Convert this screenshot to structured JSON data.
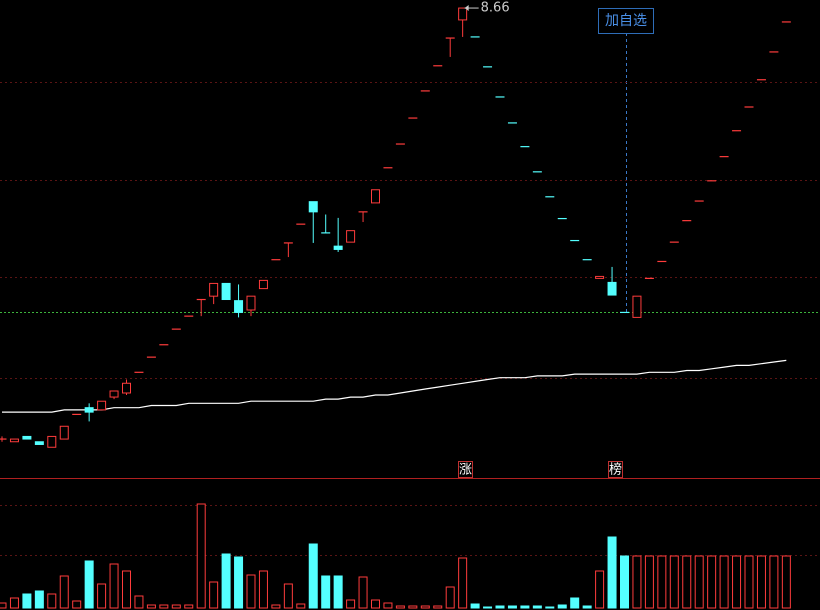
{
  "chart_data": {
    "type": "candlestick",
    "log_scale": true,
    "ylim": [
      0.48,
      9.1
    ],
    "grid": true,
    "grid_levels": [
      5.5,
      3.01,
      1.65,
      0.89
    ],
    "up_color": "#ff3c3c",
    "down_color": "#54ffff",
    "reference_line": 1.33,
    "watch_button": "加自选",
    "markers": [
      "涨",
      "榜"
    ],
    "candles": [
      [
        0.61,
        0.61,
        0.6,
        0.62
      ],
      [
        0.6,
        0.61,
        0.6,
        0.61
      ],
      [
        0.62,
        0.61,
        0.61,
        0.62
      ],
      [
        0.6,
        0.59,
        0.59,
        0.6
      ],
      [
        0.58,
        0.62,
        0.58,
        0.62
      ],
      [
        0.61,
        0.66,
        0.61,
        0.66
      ],
      [
        0.71,
        0.71,
        0.71,
        0.71
      ],
      [
        0.74,
        0.72,
        0.68,
        0.76
      ],
      [
        0.73,
        0.77,
        0.73,
        0.77
      ],
      [
        0.79,
        0.82,
        0.78,
        0.82
      ],
      [
        0.81,
        0.86,
        0.8,
        0.88
      ],
      [
        0.92,
        0.92,
        0.92,
        0.92
      ],
      [
        1.01,
        1.01,
        1.01,
        1.01
      ],
      [
        1.09,
        1.09,
        1.09,
        1.09
      ],
      [
        1.2,
        1.2,
        1.2,
        1.2
      ],
      [
        1.3,
        1.3,
        1.3,
        1.3
      ],
      [
        1.44,
        1.44,
        1.3,
        1.44
      ],
      [
        1.47,
        1.59,
        1.4,
        1.59
      ],
      [
        1.59,
        1.44,
        1.44,
        1.59
      ],
      [
        1.43,
        1.33,
        1.29,
        1.58
      ],
      [
        1.35,
        1.47,
        1.3,
        1.47
      ],
      [
        1.54,
        1.62,
        1.54,
        1.62
      ],
      [
        1.84,
        1.84,
        1.84,
        1.84
      ],
      [
        2.04,
        2.04,
        1.87,
        2.04
      ],
      [
        2.29,
        2.29,
        2.29,
        2.29
      ],
      [
        2.63,
        2.47,
        2.04,
        2.63
      ],
      [
        2.17,
        2.17,
        2.17,
        2.43
      ],
      [
        2.0,
        1.96,
        1.93,
        2.38
      ],
      [
        2.05,
        2.2,
        2.05,
        2.2
      ],
      [
        2.47,
        2.47,
        2.32,
        2.47
      ],
      [
        2.61,
        2.83,
        2.61,
        2.83
      ],
      [
        3.24,
        3.24,
        3.24,
        3.24
      ],
      [
        3.75,
        3.75,
        3.75,
        3.75
      ],
      [
        4.4,
        4.4,
        4.4,
        4.4
      ],
      [
        5.2,
        5.2,
        5.2,
        5.2
      ],
      [
        6.07,
        6.07,
        6.07,
        6.07
      ],
      [
        7.2,
        7.2,
        6.41,
        7.2
      ],
      [
        8.05,
        8.66,
        7.25,
        8.66
      ],
      [
        7.25,
        7.25,
        7.25,
        7.25
      ],
      [
        6.03,
        6.03,
        6.03,
        6.03
      ],
      [
        5.01,
        5.01,
        5.01,
        5.01
      ],
      [
        4.27,
        4.27,
        4.27,
        4.27
      ],
      [
        3.69,
        3.69,
        3.69,
        3.69
      ],
      [
        3.16,
        3.16,
        3.16,
        3.16
      ],
      [
        2.71,
        2.71,
        2.71,
        2.71
      ],
      [
        2.37,
        2.37,
        2.37,
        2.37
      ],
      [
        2.07,
        2.07,
        2.07,
        2.07
      ],
      [
        1.84,
        1.84,
        1.84,
        1.84
      ],
      [
        1.64,
        1.66,
        1.64,
        1.66
      ],
      [
        1.6,
        1.48,
        1.48,
        1.76
      ],
      [
        1.33,
        1.33,
        1.33,
        1.33
      ],
      [
        1.29,
        1.47,
        1.29,
        1.47
      ],
      [
        1.64,
        1.64,
        1.64,
        1.64
      ],
      [
        1.82,
        1.82,
        1.82,
        1.82
      ],
      [
        2.05,
        2.05,
        2.05,
        2.05
      ],
      [
        2.34,
        2.34,
        2.34,
        2.34
      ],
      [
        2.64,
        2.64,
        2.64,
        2.64
      ],
      [
        2.99,
        2.99,
        2.99,
        2.99
      ],
      [
        3.47,
        3.47,
        3.47,
        3.47
      ],
      [
        4.07,
        4.07,
        4.07,
        4.07
      ],
      [
        4.71,
        4.71,
        4.71,
        4.71
      ],
      [
        5.57,
        5.57,
        5.57,
        5.57
      ],
      [
        6.61,
        6.61,
        6.61,
        6.61
      ],
      [
        7.95,
        7.95,
        7.95,
        7.95
      ]
    ],
    "ma": {
      "color": "#ffffff",
      "values": [
        0.72,
        0.72,
        0.72,
        0.72,
        0.72,
        0.73,
        0.73,
        0.73,
        0.73,
        0.74,
        0.74,
        0.74,
        0.75,
        0.75,
        0.75,
        0.76,
        0.76,
        0.76,
        0.76,
        0.76,
        0.77,
        0.77,
        0.77,
        0.77,
        0.77,
        0.77,
        0.78,
        0.78,
        0.79,
        0.79,
        0.8,
        0.8,
        0.81,
        0.82,
        0.83,
        0.84,
        0.85,
        0.86,
        0.87,
        0.88,
        0.89,
        0.89,
        0.89,
        0.9,
        0.9,
        0.9,
        0.91,
        0.91,
        0.91,
        0.91,
        0.91,
        0.91,
        0.92,
        0.92,
        0.92,
        0.93,
        0.93,
        0.94,
        0.95,
        0.96,
        0.96,
        0.97,
        0.98,
        0.99
      ]
    },
    "volume": {
      "ylim": [
        0,
        128
      ],
      "grid_levels": [
        103,
        53
      ],
      "values": [
        5,
        10,
        14,
        17,
        14,
        32,
        7,
        47,
        24,
        44,
        37,
        12,
        3,
        3,
        3,
        3,
        104,
        26,
        54,
        51,
        33,
        37,
        3,
        24,
        4,
        64,
        32,
        32,
        8,
        31,
        8,
        5,
        2,
        2,
        2,
        2,
        21,
        50,
        4,
        1,
        2,
        2,
        2,
        2,
        1,
        3,
        10,
        2,
        37,
        71,
        52,
        52,
        52,
        52,
        52,
        52,
        52,
        52,
        52,
        52,
        52,
        52,
        52,
        52
      ]
    }
  }
}
